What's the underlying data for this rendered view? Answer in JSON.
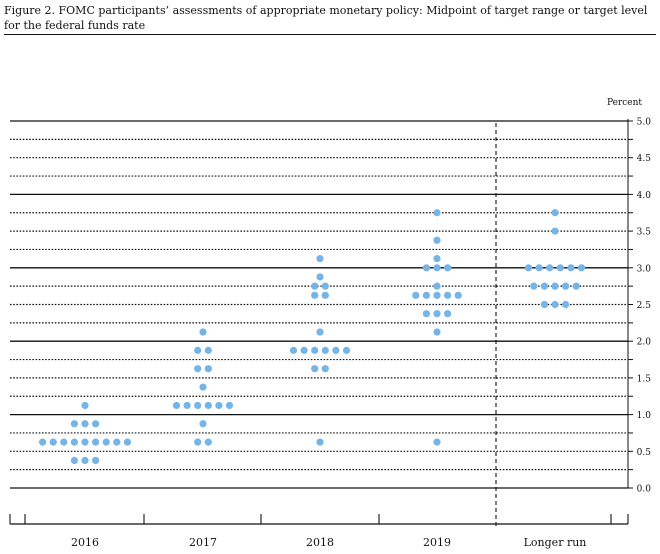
{
  "figure_title": "Figure 2. FOMC participants’ assessments of appropriate monetary policy: Midpoint of target range or target level for the federal funds rate",
  "chart_data": {
    "type": "scatter",
    "subtype": "dot plot",
    "title": "Figure 2. FOMC participants’ assessments of appropriate monetary policy: Midpoint of target range or target level for the federal funds rate",
    "ylabel": "Percent",
    "ylim": [
      0,
      5
    ],
    "yticks": [
      "0.0",
      "0.5",
      "1.0",
      "1.5",
      "2.0",
      "2.5",
      "3.0",
      "3.5",
      "4.0",
      "4.5",
      "5.0"
    ],
    "categories": [
      "2016",
      "2017",
      "2018",
      "2019",
      "Longer run"
    ],
    "dot_color": "#74b4e6",
    "grid": "dotted lines every 0.25, solid lines at whole percents",
    "separator": "dashed vertical line before Longer run",
    "series": [
      {
        "category": "2016",
        "dots": [
          {
            "y": 1.125,
            "count": 1
          },
          {
            "y": 0.875,
            "count": 3
          },
          {
            "y": 0.625,
            "count": 9
          },
          {
            "y": 0.375,
            "count": 3
          }
        ]
      },
      {
        "category": "2017",
        "dots": [
          {
            "y": 2.125,
            "count": 1
          },
          {
            "y": 1.875,
            "count": 2
          },
          {
            "y": 1.625,
            "count": 2
          },
          {
            "y": 1.375,
            "count": 1
          },
          {
            "y": 1.125,
            "count": 6
          },
          {
            "y": 0.875,
            "count": 1
          },
          {
            "y": 0.625,
            "count": 2
          }
        ]
      },
      {
        "category": "2018",
        "dots": [
          {
            "y": 3.125,
            "count": 1
          },
          {
            "y": 2.875,
            "count": 1
          },
          {
            "y": 2.75,
            "count": 2
          },
          {
            "y": 2.625,
            "count": 2
          },
          {
            "y": 2.125,
            "count": 1
          },
          {
            "y": 1.875,
            "count": 6
          },
          {
            "y": 1.625,
            "count": 2
          },
          {
            "y": 0.625,
            "count": 1
          }
        ]
      },
      {
        "category": "2019",
        "dots": [
          {
            "y": 3.75,
            "count": 1
          },
          {
            "y": 3.375,
            "count": 1
          },
          {
            "y": 3.125,
            "count": 1
          },
          {
            "y": 3.0,
            "count": 3
          },
          {
            "y": 2.75,
            "count": 1
          },
          {
            "y": 2.625,
            "count": 5
          },
          {
            "y": 2.375,
            "count": 3
          },
          {
            "y": 2.125,
            "count": 1
          },
          {
            "y": 0.625,
            "count": 1
          }
        ]
      },
      {
        "category": "Longer run",
        "dots": [
          {
            "y": 3.75,
            "count": 1
          },
          {
            "y": 3.5,
            "count": 1
          },
          {
            "y": 3.0,
            "count": 6
          },
          {
            "y": 2.75,
            "count": 5
          },
          {
            "y": 2.5,
            "count": 3
          }
        ]
      }
    ]
  }
}
